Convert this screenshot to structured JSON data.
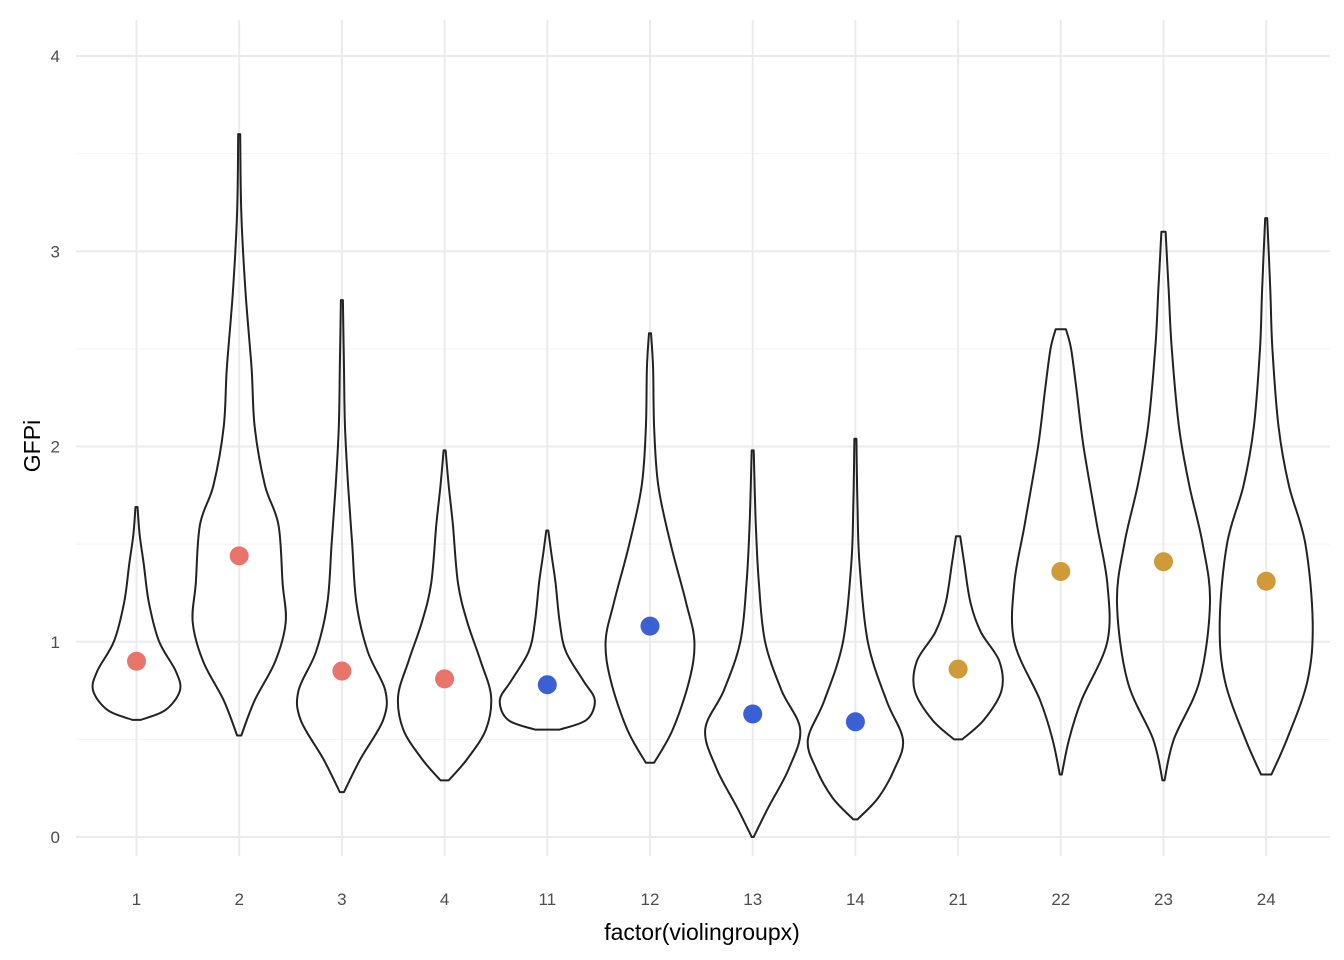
{
  "chart_data": {
    "type": "violin",
    "xlabel": "factor(violingroupx)",
    "ylabel": "GFPi",
    "ylim": [
      0,
      4
    ],
    "yticks": [
      "0",
      "1",
      "2",
      "3",
      "4"
    ],
    "grid": true,
    "groups": [
      {
        "label": "1",
        "mean": 0.9,
        "color": "#e8746a",
        "profile": [
          [
            0.6,
            0.04
          ],
          [
            0.65,
            0.28
          ],
          [
            0.75,
            0.42
          ],
          [
            0.85,
            0.38
          ],
          [
            1.0,
            0.22
          ],
          [
            1.2,
            0.12
          ],
          [
            1.4,
            0.07
          ],
          [
            1.55,
            0.03
          ],
          [
            1.69,
            0.01
          ]
        ]
      },
      {
        "label": "2",
        "mean": 1.44,
        "color": "#e8746a",
        "profile": [
          [
            0.52,
            0.02
          ],
          [
            0.7,
            0.15
          ],
          [
            0.9,
            0.35
          ],
          [
            1.1,
            0.45
          ],
          [
            1.3,
            0.42
          ],
          [
            1.6,
            0.38
          ],
          [
            1.8,
            0.25
          ],
          [
            2.1,
            0.15
          ],
          [
            2.4,
            0.12
          ],
          [
            2.8,
            0.06
          ],
          [
            3.2,
            0.02
          ],
          [
            3.6,
            0.01
          ]
        ]
      },
      {
        "label": "3",
        "mean": 0.85,
        "color": "#e8746a",
        "profile": [
          [
            0.23,
            0.02
          ],
          [
            0.4,
            0.18
          ],
          [
            0.6,
            0.4
          ],
          [
            0.75,
            0.42
          ],
          [
            0.95,
            0.25
          ],
          [
            1.2,
            0.14
          ],
          [
            1.5,
            0.1
          ],
          [
            1.8,
            0.06
          ],
          [
            2.1,
            0.03
          ],
          [
            2.4,
            0.02
          ],
          [
            2.75,
            0.01
          ]
        ]
      },
      {
        "label": "4",
        "mean": 0.81,
        "color": "#e8746a",
        "profile": [
          [
            0.29,
            0.04
          ],
          [
            0.4,
            0.22
          ],
          [
            0.55,
            0.4
          ],
          [
            0.72,
            0.45
          ],
          [
            0.9,
            0.35
          ],
          [
            1.1,
            0.22
          ],
          [
            1.3,
            0.13
          ],
          [
            1.6,
            0.08
          ],
          [
            1.8,
            0.04
          ],
          [
            1.98,
            0.01
          ]
        ]
      },
      {
        "label": "11",
        "mean": 0.78,
        "color": "#3b5fd4",
        "profile": [
          [
            0.55,
            0.12
          ],
          [
            0.6,
            0.38
          ],
          [
            0.7,
            0.46
          ],
          [
            0.8,
            0.35
          ],
          [
            0.95,
            0.18
          ],
          [
            1.1,
            0.12
          ],
          [
            1.3,
            0.08
          ],
          [
            1.45,
            0.04
          ],
          [
            1.57,
            0.01
          ]
        ]
      },
      {
        "label": "12",
        "mean": 1.08,
        "color": "#3b5fd4",
        "profile": [
          [
            0.38,
            0.04
          ],
          [
            0.55,
            0.22
          ],
          [
            0.8,
            0.38
          ],
          [
            1.0,
            0.43
          ],
          [
            1.2,
            0.35
          ],
          [
            1.5,
            0.2
          ],
          [
            1.8,
            0.08
          ],
          [
            2.1,
            0.04
          ],
          [
            2.4,
            0.03
          ],
          [
            2.58,
            0.01
          ]
        ]
      },
      {
        "label": "13",
        "mean": 0.63,
        "color": "#3b5fd4",
        "profile": [
          [
            0.0,
            0.01
          ],
          [
            0.15,
            0.15
          ],
          [
            0.35,
            0.35
          ],
          [
            0.55,
            0.46
          ],
          [
            0.75,
            0.28
          ],
          [
            1.0,
            0.12
          ],
          [
            1.3,
            0.06
          ],
          [
            1.6,
            0.03
          ],
          [
            1.98,
            0.01
          ]
        ]
      },
      {
        "label": "14",
        "mean": 0.59,
        "color": "#3b5fd4",
        "profile": [
          [
            0.09,
            0.02
          ],
          [
            0.2,
            0.22
          ],
          [
            0.35,
            0.38
          ],
          [
            0.5,
            0.46
          ],
          [
            0.7,
            0.3
          ],
          [
            1.0,
            0.12
          ],
          [
            1.4,
            0.04
          ],
          [
            1.7,
            0.02
          ],
          [
            2.04,
            0.01
          ]
        ]
      },
      {
        "label": "21",
        "mean": 0.86,
        "color": "#d09a38",
        "profile": [
          [
            0.5,
            0.04
          ],
          [
            0.6,
            0.25
          ],
          [
            0.75,
            0.42
          ],
          [
            0.9,
            0.4
          ],
          [
            1.05,
            0.22
          ],
          [
            1.2,
            0.12
          ],
          [
            1.4,
            0.06
          ],
          [
            1.54,
            0.02
          ]
        ]
      },
      {
        "label": "22",
        "mean": 1.36,
        "color": "#d09a38",
        "profile": [
          [
            0.32,
            0.01
          ],
          [
            0.5,
            0.08
          ],
          [
            0.7,
            0.2
          ],
          [
            1.0,
            0.45
          ],
          [
            1.3,
            0.45
          ],
          [
            1.6,
            0.35
          ],
          [
            2.0,
            0.22
          ],
          [
            2.3,
            0.15
          ],
          [
            2.5,
            0.1
          ],
          [
            2.6,
            0.05
          ]
        ]
      },
      {
        "label": "23",
        "mean": 1.41,
        "color": "#d09a38",
        "profile": [
          [
            0.29,
            0.01
          ],
          [
            0.5,
            0.1
          ],
          [
            0.8,
            0.35
          ],
          [
            1.2,
            0.45
          ],
          [
            1.5,
            0.38
          ],
          [
            1.8,
            0.25
          ],
          [
            2.1,
            0.15
          ],
          [
            2.5,
            0.08
          ],
          [
            2.8,
            0.05
          ],
          [
            3.1,
            0.02
          ]
        ]
      },
      {
        "label": "24",
        "mean": 1.31,
        "color": "#d09a38",
        "profile": [
          [
            0.32,
            0.05
          ],
          [
            0.5,
            0.2
          ],
          [
            0.8,
            0.4
          ],
          [
            1.1,
            0.45
          ],
          [
            1.5,
            0.38
          ],
          [
            1.8,
            0.22
          ],
          [
            2.1,
            0.12
          ],
          [
            2.5,
            0.06
          ],
          [
            2.8,
            0.04
          ],
          [
            3.17,
            0.01
          ]
        ]
      }
    ]
  }
}
